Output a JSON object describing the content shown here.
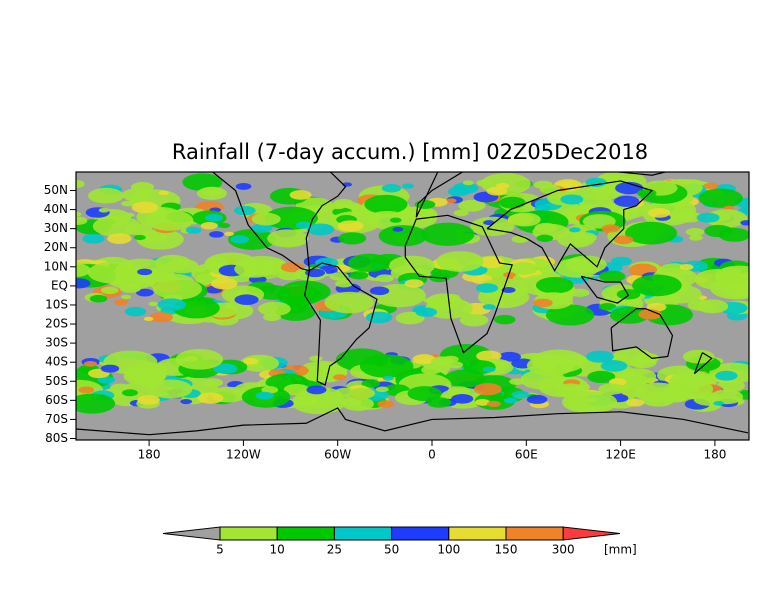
{
  "title": "Rainfall (7-day accum.) [mm] 02Z05Dec2018",
  "lat_ticks": [
    {
      "value": 50,
      "label": "50N"
    },
    {
      "value": 40,
      "label": "40N"
    },
    {
      "value": 30,
      "label": "30N"
    },
    {
      "value": 20,
      "label": "20N"
    },
    {
      "value": 10,
      "label": "10N"
    },
    {
      "value": 0,
      "label": "EQ"
    },
    {
      "value": -10,
      "label": "10S"
    },
    {
      "value": -20,
      "label": "20S"
    },
    {
      "value": -30,
      "label": "30S"
    },
    {
      "value": -40,
      "label": "40S"
    },
    {
      "value": -50,
      "label": "50S"
    },
    {
      "value": -60,
      "label": "60S"
    },
    {
      "value": -70,
      "label": "70S"
    },
    {
      "value": -80,
      "label": "80S"
    }
  ],
  "lon_ticks": [
    {
      "value": -180,
      "label": "180"
    },
    {
      "value": -120,
      "label": "120W"
    },
    {
      "value": -60,
      "label": "60W"
    },
    {
      "value": 0,
      "label": "0"
    },
    {
      "value": 60,
      "label": "60E"
    },
    {
      "value": 120,
      "label": "120E"
    },
    {
      "value": 180,
      "label": "180"
    }
  ],
  "colorbar": {
    "levels": [
      5,
      10,
      25,
      50,
      100,
      150,
      300
    ],
    "colors": [
      "#a0e632",
      "#00c800",
      "#00c8c8",
      "#1e3cff",
      "#e6dc32",
      "#f08228"
    ],
    "under_color": "#a0a0a0",
    "over_color": "#fa3c3c",
    "unit": "[mm]"
  }
}
